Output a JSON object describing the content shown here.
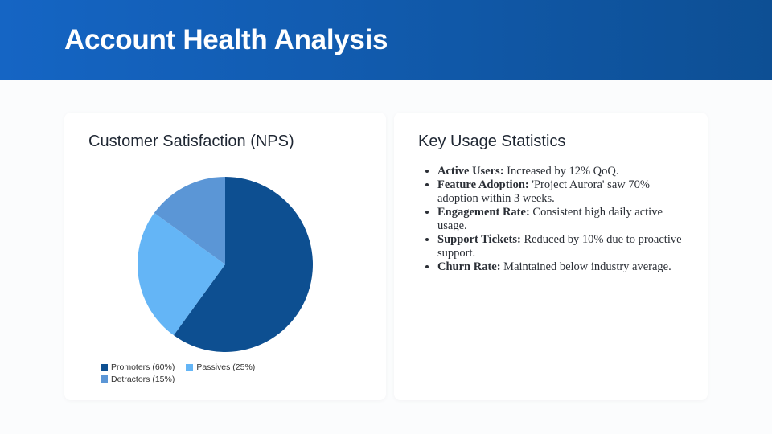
{
  "header": {
    "title": "Account Health Analysis"
  },
  "nps": {
    "title": "Customer Satisfaction (NPS)"
  },
  "chart_data": {
    "type": "pie",
    "title": "Customer Satisfaction (NPS)",
    "categories": [
      "Promoters",
      "Passives",
      "Detractors"
    ],
    "values": [
      60,
      25,
      15
    ],
    "labels": [
      "Promoters (60%)",
      "Passives (25%)",
      "Detractors (15%)"
    ],
    "colors": [
      "#0d4f91",
      "#64b5f6",
      "#5b96d6"
    ],
    "legend": "bottom-left"
  },
  "stats": {
    "title": "Key Usage Statistics",
    "items": [
      {
        "label": "Active Users:",
        "text": " Increased by 12% QoQ."
      },
      {
        "label": "Feature Adoption:",
        "text": " 'Project Aurora' saw 70% adoption within 3 weeks."
      },
      {
        "label": "Engagement Rate:",
        "text": " Consistent high daily active usage."
      },
      {
        "label": "Support Tickets:",
        "text": " Reduced by 10% due to proactive support."
      },
      {
        "label": "Churn Rate:",
        "text": " Maintained below industry average."
      }
    ]
  }
}
